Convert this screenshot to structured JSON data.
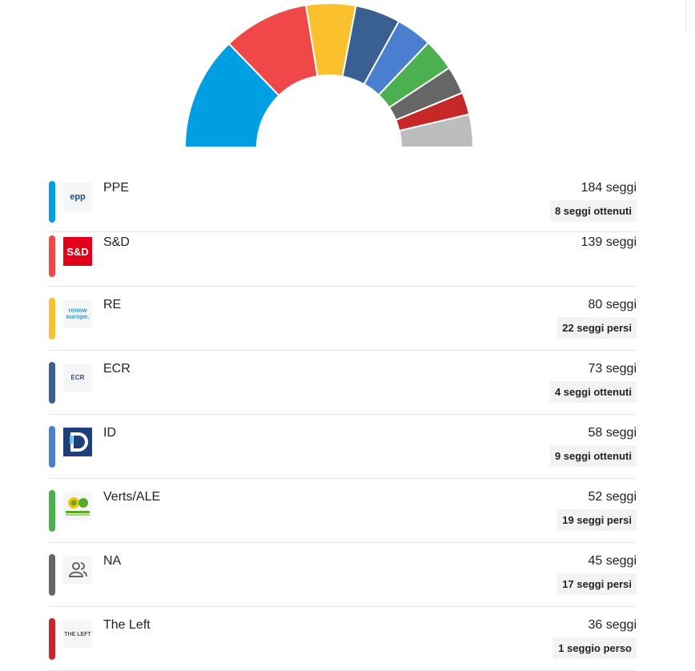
{
  "chart_data": {
    "type": "pie",
    "categories": [
      "PPE",
      "S&D",
      "RE",
      "ECR",
      "ID",
      "Verts/ALE",
      "NA",
      "The Left",
      null
    ],
    "values": [
      184,
      139,
      80,
      73,
      58,
      52,
      45,
      36,
      53
    ],
    "value_labels": [
      "184 seggi",
      "139 seggi",
      "80 seggi",
      "73 seggi",
      "58 seggi",
      "52 seggi",
      "45 seggi",
      "36 seggi",
      null
    ],
    "colors": [
      "#009fe3",
      "#f04848",
      "#fbc02d",
      "#3a5f91",
      "#4a7fd0",
      "#4caf50",
      "#666666",
      "#c62828",
      "#bdbdbd"
    ]
  },
  "seat_changes": [
    "8 seggi ottenuti",
    null,
    "22 seggi persi",
    "4 seggi ottenuti",
    "9 seggi ottenuti",
    "19 seggi persi",
    "17 seggi persi",
    "1 seggio perso"
  ],
  "logo_texts": [
    "epp",
    "S&D",
    "renew europe.",
    "ECR",
    null,
    null,
    null,
    "THE LEFT"
  ]
}
